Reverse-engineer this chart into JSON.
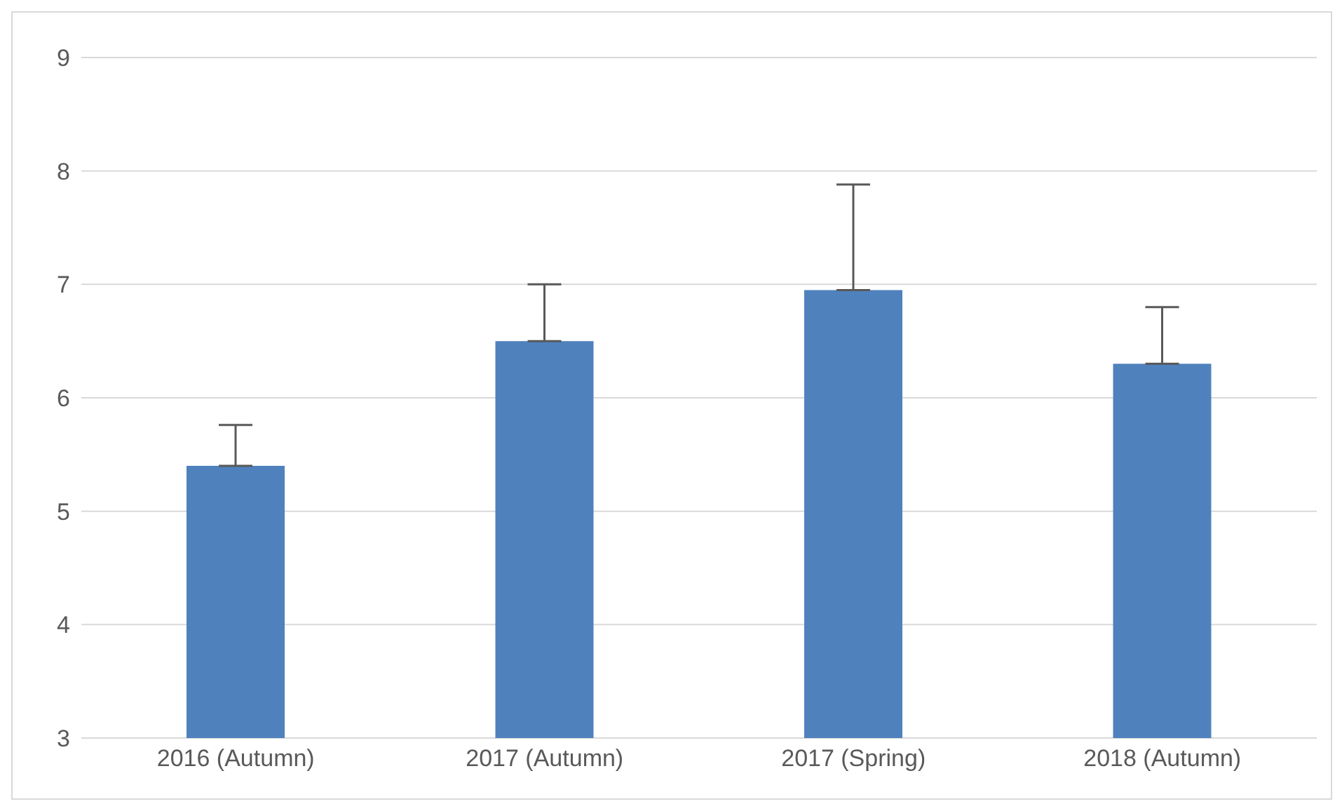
{
  "chart_data": {
    "type": "bar",
    "categories": [
      "2016 (Autumn)",
      "2017 (Autumn)",
      "2017 (Spring)",
      "2018 (Autumn)"
    ],
    "values": [
      5.4,
      6.5,
      6.95,
      6.3
    ],
    "errors": [
      [
        5.4,
        5.76
      ],
      [
        6.5,
        7.0
      ],
      [
        6.95,
        7.88
      ],
      [
        6.3,
        6.8
      ]
    ],
    "color": "#4f81bd",
    "ylim": [
      3,
      9
    ],
    "yticks": [
      3,
      4,
      5,
      6,
      7,
      8,
      9
    ],
    "grid": "y"
  }
}
